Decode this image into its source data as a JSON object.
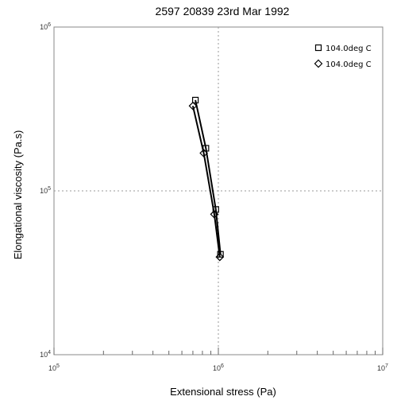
{
  "chart_data": {
    "type": "line",
    "title": "2597   20839   23rd Mar 1992",
    "xlabel": "Extensional stress (Pa)",
    "ylabel": "Elongational viscosity (Pa.s)",
    "x_scale": "log",
    "y_scale": "log",
    "xlim": [
      100000,
      10000000
    ],
    "ylim": [
      10000,
      1000000
    ],
    "x_ticks": [
      {
        "base": "10",
        "exp": "5",
        "value": 100000
      },
      {
        "base": "10",
        "exp": "6",
        "value": 1000000
      },
      {
        "base": "10",
        "exp": "7",
        "value": 10000000
      }
    ],
    "y_ticks": [
      {
        "base": "10",
        "exp": "4",
        "value": 10000
      },
      {
        "base": "10",
        "exp": "5",
        "value": 100000
      },
      {
        "base": "10",
        "exp": "6",
        "value": 1000000
      }
    ],
    "grid": {
      "x": [
        1000000
      ],
      "y": [
        100000
      ],
      "style": "dotted"
    },
    "legend": {
      "position": "top-right"
    },
    "series": [
      {
        "name": "104.0deg C",
        "marker": "square",
        "color": "#000000",
        "x": [
          725000,
          840000,
          965000,
          1030000
        ],
        "y": [
          358000,
          182000,
          77000,
          41000
        ]
      },
      {
        "name": "104.0deg C",
        "marker": "diamond",
        "color": "#000000",
        "x": [
          700000,
          815000,
          945000,
          1020000
        ],
        "y": [
          330000,
          170000,
          72000,
          39500
        ]
      }
    ]
  }
}
